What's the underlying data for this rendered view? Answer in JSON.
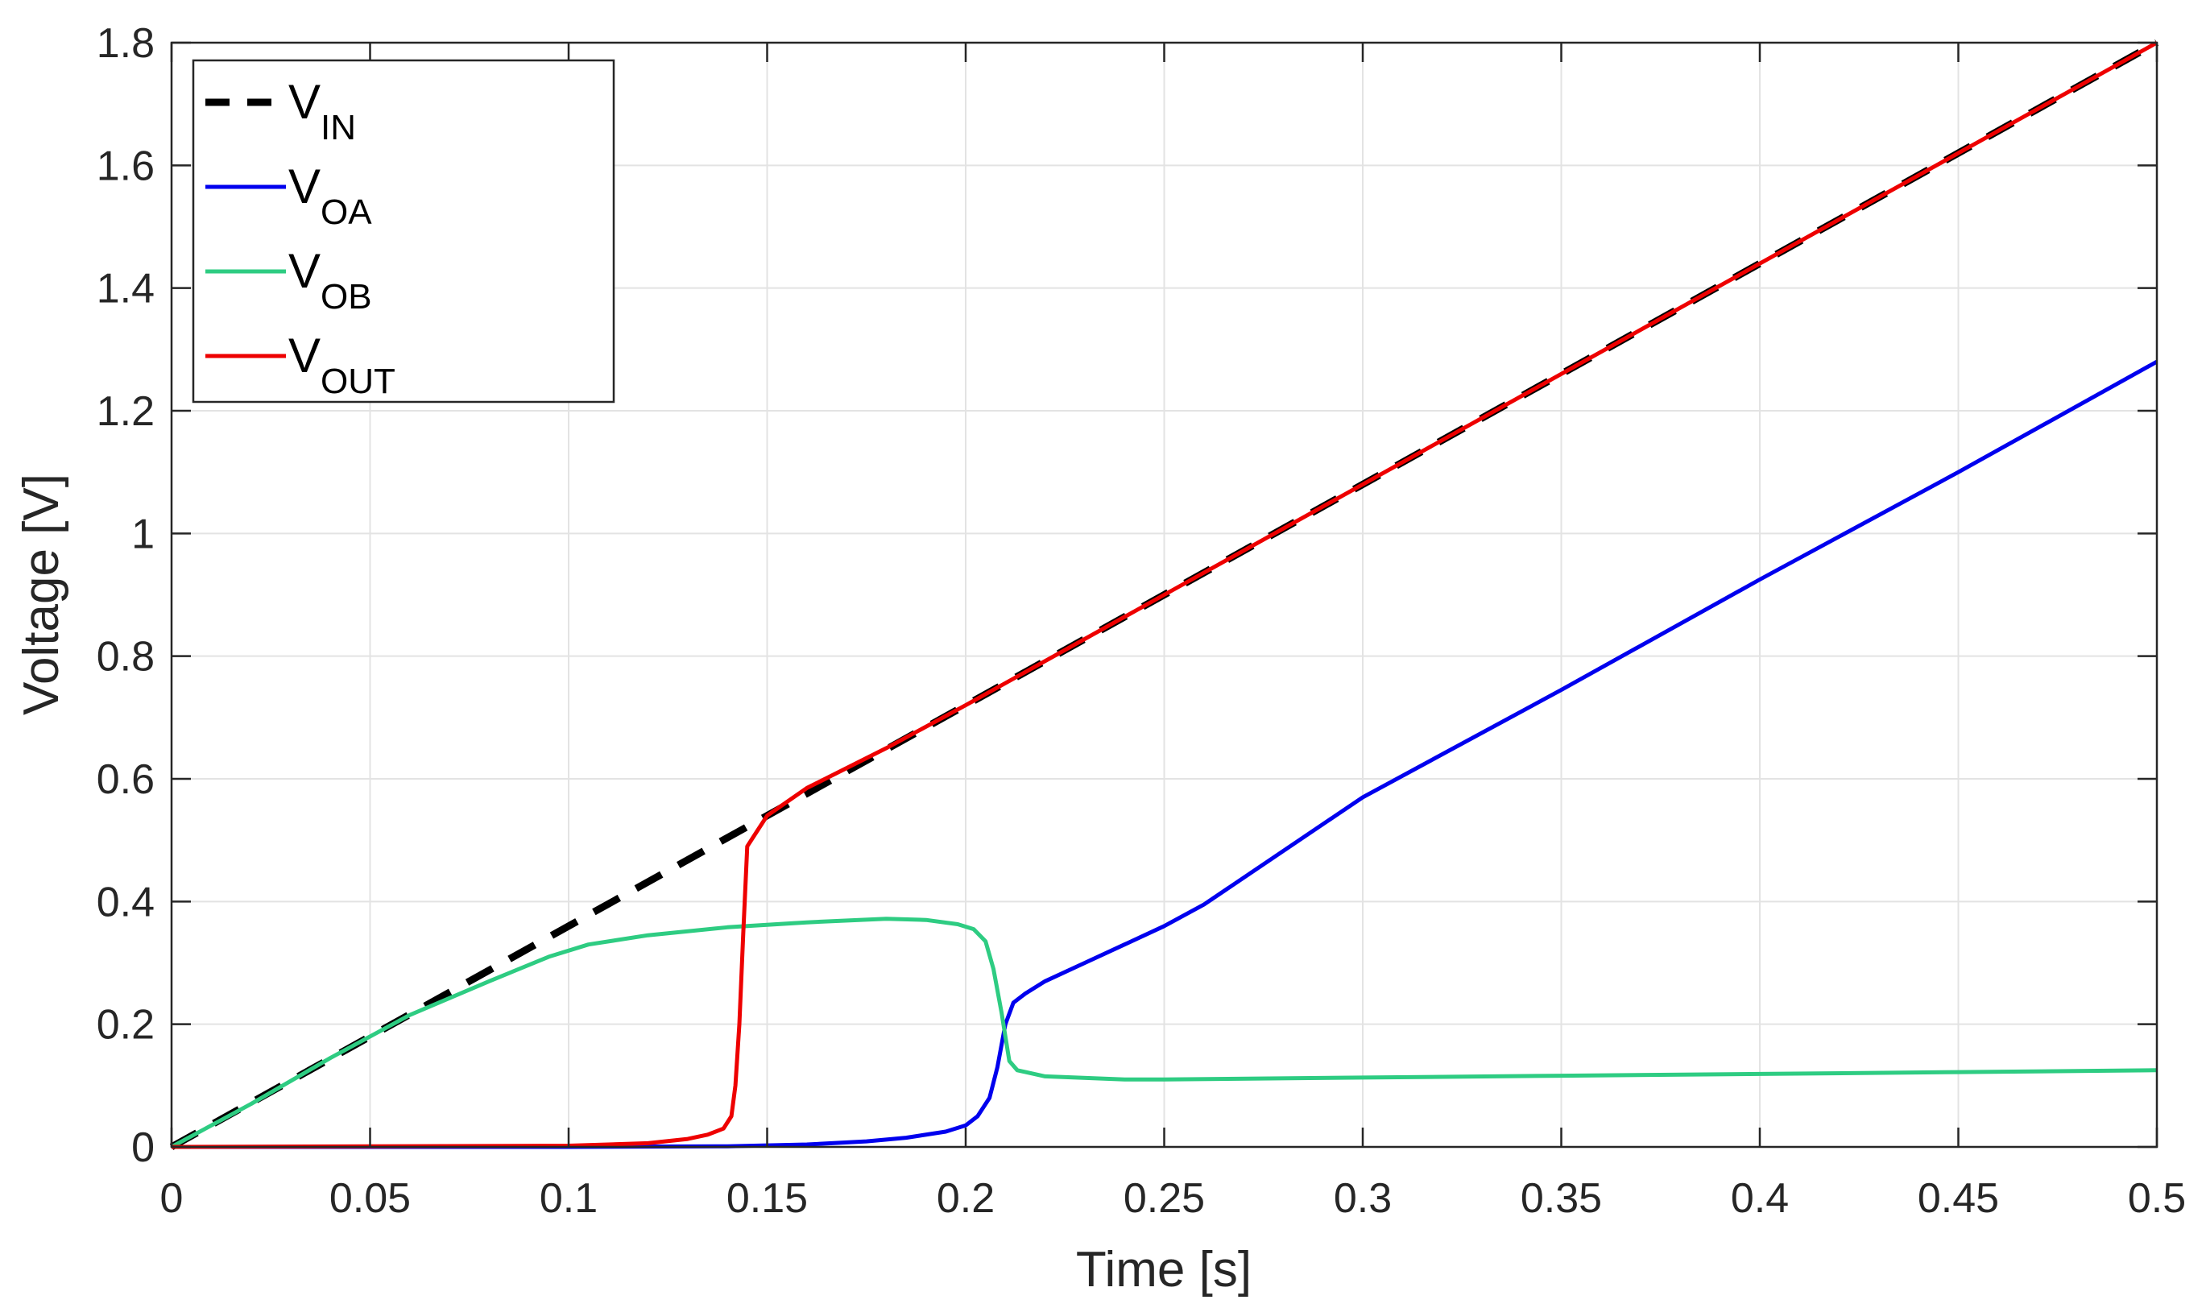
{
  "chart_data": {
    "type": "line",
    "xlabel": "Time [s]",
    "ylabel": "Voltage [V]",
    "xlim": [
      0,
      0.5
    ],
    "ylim": [
      0,
      1.8
    ],
    "grid": true,
    "legend_position": "top-left",
    "x_ticks": [
      {
        "value": 0,
        "label": "0"
      },
      {
        "value": 0.05,
        "label": "0.05"
      },
      {
        "value": 0.1,
        "label": "0.1"
      },
      {
        "value": 0.15,
        "label": "0.15"
      },
      {
        "value": 0.2,
        "label": "0.2"
      },
      {
        "value": 0.25,
        "label": "0.25"
      },
      {
        "value": 0.3,
        "label": "0.3"
      },
      {
        "value": 0.35,
        "label": "0.35"
      },
      {
        "value": 0.4,
        "label": "0.4"
      },
      {
        "value": 0.45,
        "label": "0.45"
      },
      {
        "value": 0.5,
        "label": "0.5"
      }
    ],
    "y_ticks": [
      {
        "value": 0,
        "label": "0"
      },
      {
        "value": 0.2,
        "label": "0.2"
      },
      {
        "value": 0.4,
        "label": "0.4"
      },
      {
        "value": 0.6,
        "label": "0.6"
      },
      {
        "value": 0.8,
        "label": "0.8"
      },
      {
        "value": 1,
        "label": "1"
      },
      {
        "value": 1.2,
        "label": "1.2"
      },
      {
        "value": 1.4,
        "label": "1.4"
      },
      {
        "value": 1.6,
        "label": "1.6"
      },
      {
        "value": 1.8,
        "label": "1.8"
      }
    ],
    "series": [
      {
        "name": "V",
        "subscript": "IN",
        "color": "#000000",
        "dashed": true,
        "points": [
          [
            0,
            0
          ],
          [
            0.5,
            1.8
          ]
        ]
      },
      {
        "name": "V",
        "subscript": "OA",
        "color": "#0000ee",
        "dashed": false,
        "points": [
          [
            0,
            0
          ],
          [
            0.1,
            0
          ],
          [
            0.14,
            0.001
          ],
          [
            0.16,
            0.004
          ],
          [
            0.175,
            0.009
          ],
          [
            0.185,
            0.015
          ],
          [
            0.195,
            0.025
          ],
          [
            0.2,
            0.035
          ],
          [
            0.203,
            0.05
          ],
          [
            0.206,
            0.08
          ],
          [
            0.208,
            0.13
          ],
          [
            0.21,
            0.2
          ],
          [
            0.212,
            0.235
          ],
          [
            0.215,
            0.25
          ],
          [
            0.22,
            0.27
          ],
          [
            0.23,
            0.3
          ],
          [
            0.24,
            0.33
          ],
          [
            0.25,
            0.36
          ],
          [
            0.26,
            0.395
          ],
          [
            0.3,
            0.57
          ],
          [
            0.35,
            0.745
          ],
          [
            0.4,
            0.925
          ],
          [
            0.45,
            1.1
          ],
          [
            0.5,
            1.28
          ]
        ]
      },
      {
        "name": "V",
        "subscript": "OB",
        "color": "#2ecc82",
        "dashed": false,
        "points": [
          [
            0,
            0
          ],
          [
            0.02,
            0.07
          ],
          [
            0.04,
            0.145
          ],
          [
            0.06,
            0.215
          ],
          [
            0.08,
            0.27
          ],
          [
            0.095,
            0.31
          ],
          [
            0.105,
            0.33
          ],
          [
            0.12,
            0.345
          ],
          [
            0.14,
            0.358
          ],
          [
            0.16,
            0.366
          ],
          [
            0.18,
            0.372
          ],
          [
            0.19,
            0.37
          ],
          [
            0.198,
            0.363
          ],
          [
            0.202,
            0.355
          ],
          [
            0.205,
            0.335
          ],
          [
            0.207,
            0.29
          ],
          [
            0.209,
            0.22
          ],
          [
            0.211,
            0.14
          ],
          [
            0.213,
            0.125
          ],
          [
            0.22,
            0.115
          ],
          [
            0.24,
            0.11
          ],
          [
            0.25,
            0.11
          ],
          [
            0.3,
            0.113
          ],
          [
            0.35,
            0.116
          ],
          [
            0.4,
            0.119
          ],
          [
            0.45,
            0.122
          ],
          [
            0.5,
            0.125
          ]
        ]
      },
      {
        "name": "V",
        "subscript": "OUT",
        "color": "#ee0000",
        "dashed": false,
        "points": [
          [
            0,
            0
          ],
          [
            0.1,
            0.002
          ],
          [
            0.12,
            0.006
          ],
          [
            0.13,
            0.013
          ],
          [
            0.135,
            0.02
          ],
          [
            0.139,
            0.03
          ],
          [
            0.141,
            0.05
          ],
          [
            0.142,
            0.1
          ],
          [
            0.143,
            0.2
          ],
          [
            0.144,
            0.35
          ],
          [
            0.145,
            0.49
          ],
          [
            0.147,
            0.51
          ],
          [
            0.15,
            0.54
          ],
          [
            0.16,
            0.585
          ],
          [
            0.18,
            0.65
          ],
          [
            0.2,
            0.72
          ],
          [
            0.25,
            0.9
          ],
          [
            0.3,
            1.08
          ],
          [
            0.35,
            1.26
          ],
          [
            0.4,
            1.44
          ],
          [
            0.45,
            1.62
          ],
          [
            0.5,
            1.8
          ]
        ]
      }
    ]
  }
}
